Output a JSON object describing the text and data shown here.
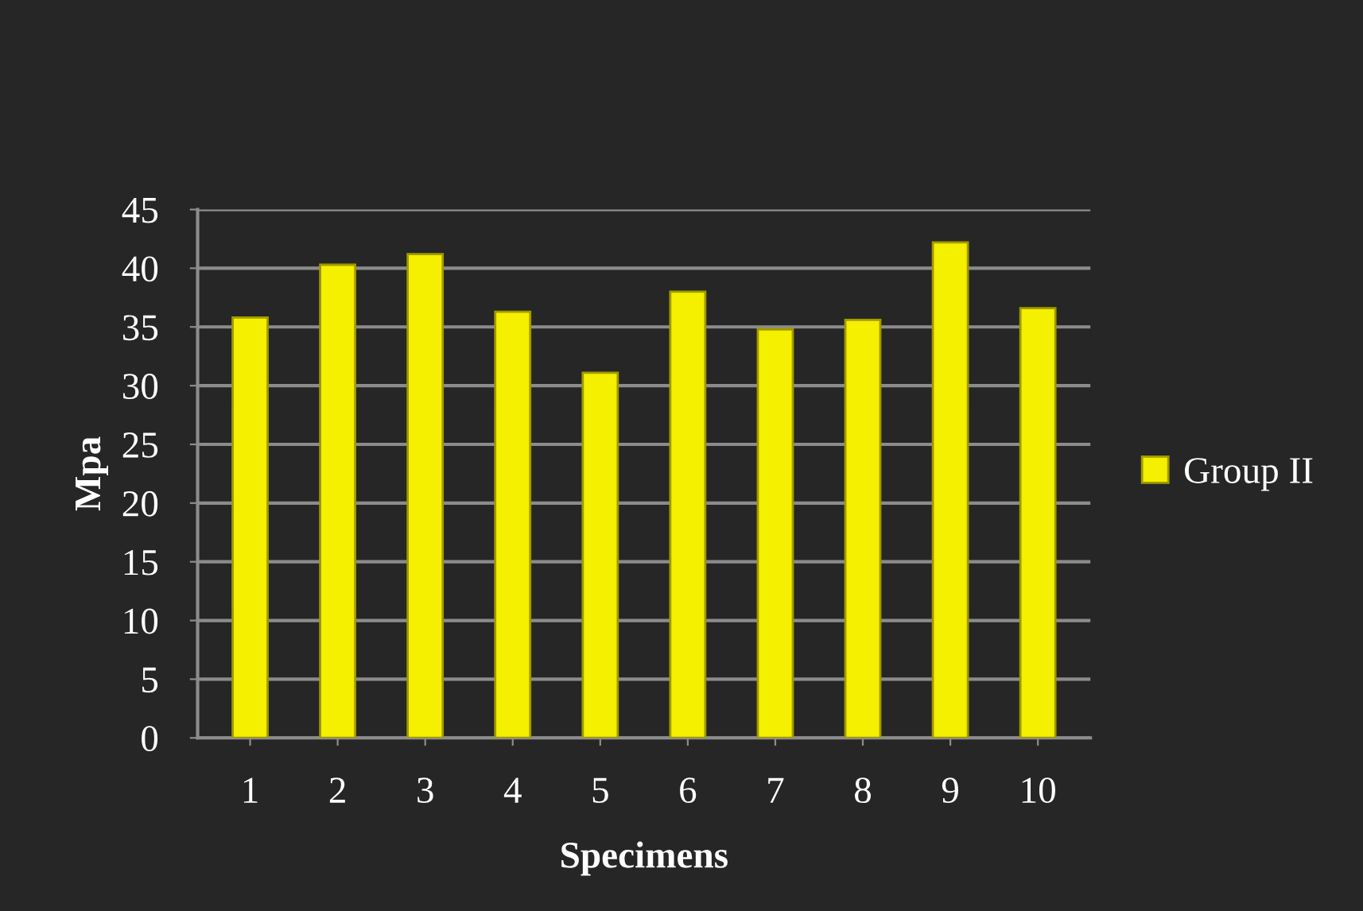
{
  "chart_data": {
    "type": "bar",
    "xlabel": "Specimens",
    "ylabel": "Mpa",
    "categories": [
      "1",
      "2",
      "3",
      "4",
      "5",
      "6",
      "7",
      "8",
      "9",
      "10"
    ],
    "series": [
      {
        "name": "Group II",
        "color": "#f5ef00",
        "values": [
          35.8,
          40.3,
          41.2,
          36.3,
          31.1,
          38.0,
          34.8,
          35.6,
          42.2,
          36.6
        ]
      }
    ],
    "ylim": [
      0,
      45
    ],
    "yticks": [
      0,
      5,
      10,
      15,
      20,
      25,
      30,
      35,
      40,
      45
    ],
    "grid": "y",
    "legend": "right"
  }
}
